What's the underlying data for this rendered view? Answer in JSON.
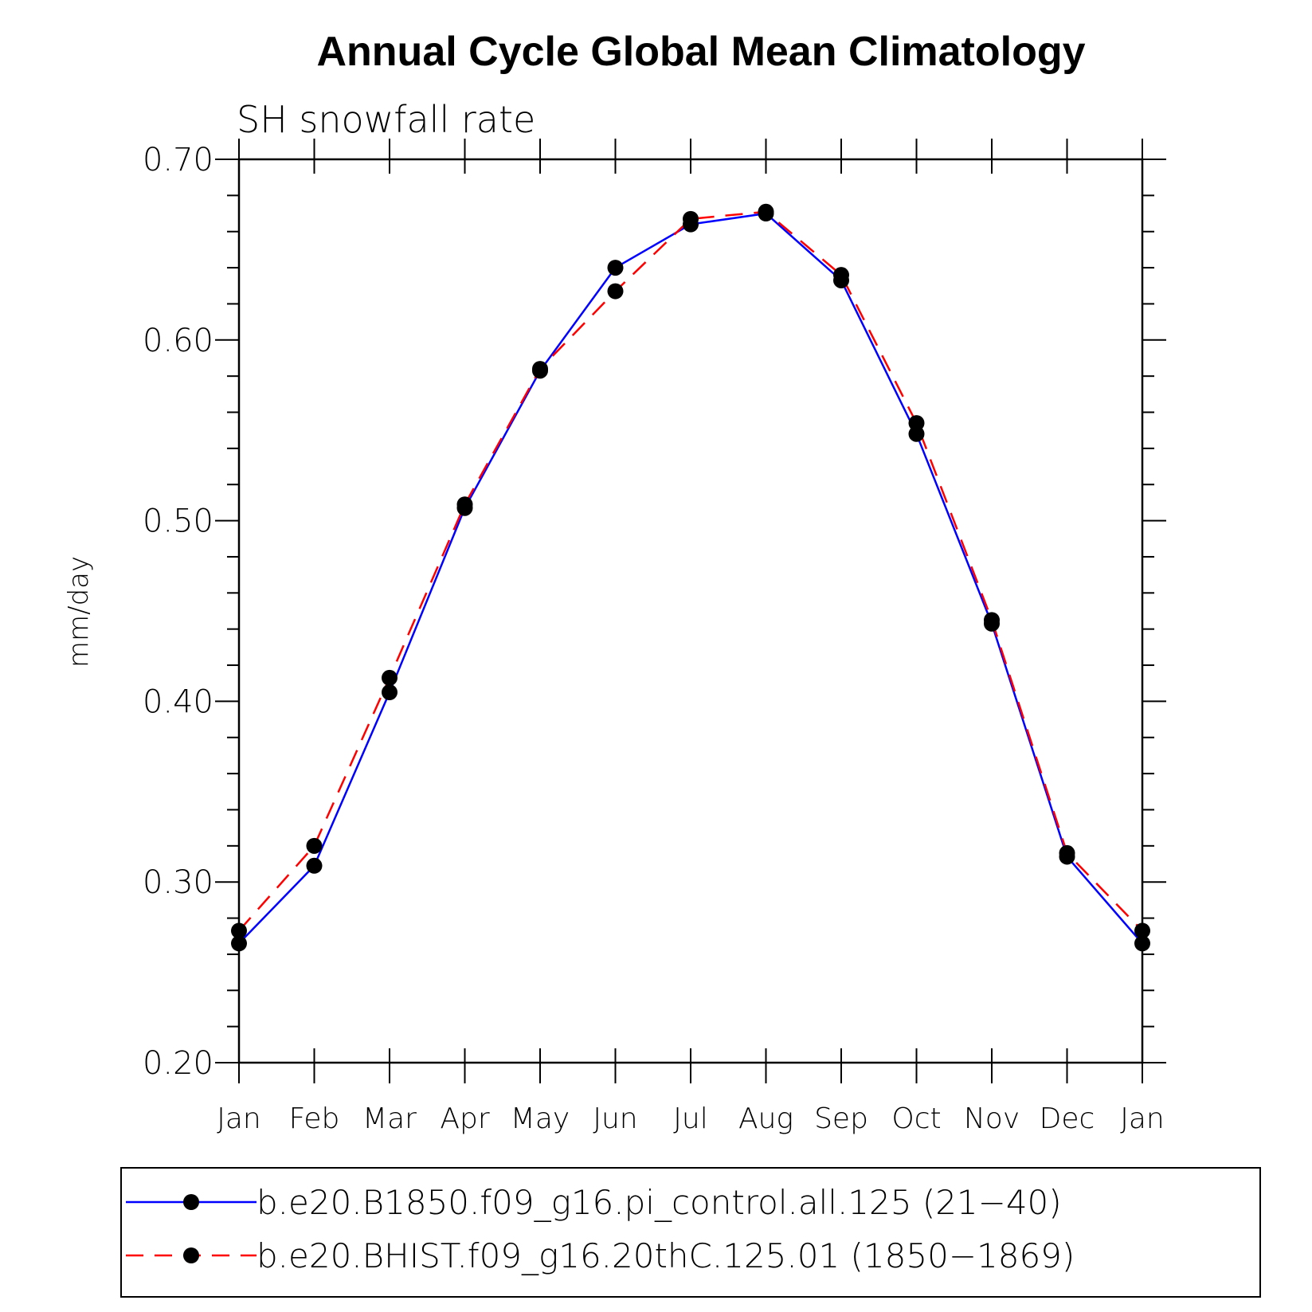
{
  "chart_data": {
    "type": "line",
    "title": "Annual Cycle Global Mean Climatology",
    "subtitle": "SH snowfall rate",
    "ylabel": "mm/day",
    "xlabel": "",
    "ylim": [
      0.2,
      0.7
    ],
    "yticks": [
      "0.20",
      "0.30",
      "0.40",
      "0.50",
      "0.60",
      "0.70"
    ],
    "categories": [
      "Jan",
      "Feb",
      "Mar",
      "Apr",
      "May",
      "Jun",
      "Jul",
      "Aug",
      "Sep",
      "Oct",
      "Nov",
      "Dec",
      "Jan"
    ],
    "series": [
      {
        "name": "b.e20.B1850.f09_g16.pi_control.all.125 (21−40)",
        "color": "#0000ff",
        "dash": "solid",
        "marker": "filled-circle",
        "values": [
          0.266,
          0.309,
          0.405,
          0.507,
          0.583,
          0.64,
          0.664,
          0.67,
          0.633,
          0.548,
          0.443,
          0.314,
          0.266
        ]
      },
      {
        "name": "b.e20.BHIST.f09_g16.20thC.125.01 (1850−1869)",
        "color": "#ff0000",
        "dash": "dashed",
        "marker": "filled-circle",
        "values": [
          0.273,
          0.32,
          0.413,
          0.509,
          0.584,
          0.627,
          0.667,
          0.671,
          0.636,
          0.554,
          0.445,
          0.316,
          0.273
        ]
      }
    ],
    "legend": "bottom",
    "grid": false
  }
}
